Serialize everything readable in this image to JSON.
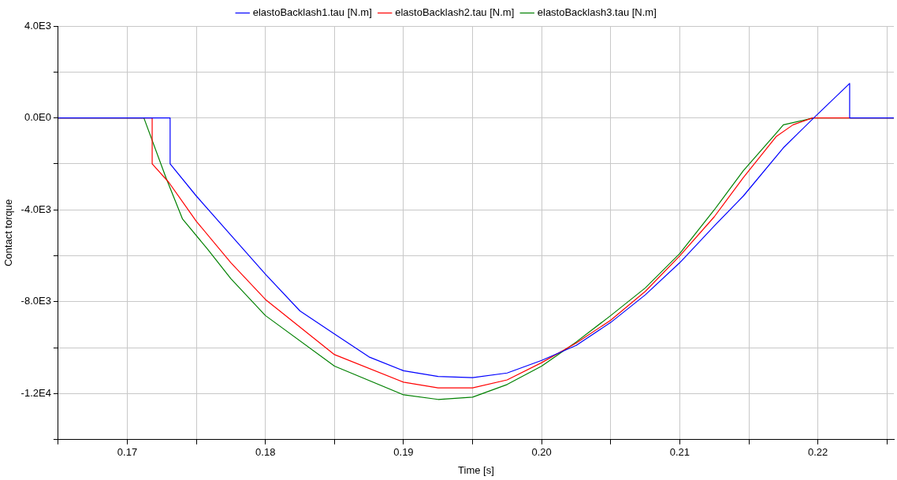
{
  "chart_data": {
    "type": "line",
    "xlabel": "Time [s]",
    "ylabel": "Contact torque",
    "legend": "top",
    "grid": true,
    "marker": "none",
    "xlim": [
      0.165,
      0.2255
    ],
    "ylim": [
      -14000,
      4000
    ],
    "xticks": [
      {
        "value": 0.165,
        "label": null
      },
      0.17,
      {
        "value": 0.175,
        "label": null
      },
      0.18,
      {
        "value": 0.185,
        "label": null
      },
      0.19,
      {
        "value": 0.195,
        "label": null
      },
      {
        "value": 0.2,
        "label": "0.20"
      },
      {
        "value": 0.205,
        "label": null
      },
      0.21,
      {
        "value": 0.215,
        "label": null
      },
      0.22,
      {
        "value": 0.225,
        "label": null
      }
    ],
    "yticks": [
      {
        "value": 4000,
        "label": "4.0E3"
      },
      {
        "value": 2000,
        "label": null
      },
      {
        "value": 0,
        "label": "0.0E0"
      },
      {
        "value": -2000,
        "label": null
      },
      {
        "value": -4000,
        "label": "-4.0E3"
      },
      {
        "value": -6000,
        "label": null
      },
      {
        "value": -8000,
        "label": "-8.0E3"
      },
      {
        "value": -10000,
        "label": null
      },
      {
        "value": -12000,
        "label": "-1.2E4"
      },
      {
        "value": -14000,
        "label": null
      }
    ],
    "series": [
      {
        "name": "elastoBacklash1.tau [N.m]",
        "color": "#0000ff",
        "x": [
          0.165,
          0.1731,
          0.1731,
          0.175,
          0.1775,
          0.18,
          0.1825,
          0.185,
          0.1875,
          0.19,
          0.1925,
          0.195,
          0.1975,
          0.2,
          0.2025,
          0.205,
          0.2075,
          0.21,
          0.2125,
          0.2146,
          0.2175,
          0.2197,
          0.2223,
          0.2223,
          0.2255
        ],
        "values": [
          0,
          0,
          -2000,
          -3400,
          -5100,
          -6800,
          -8400,
          -9400,
          -10400,
          -11000,
          -11250,
          -11300,
          -11100,
          -10550,
          -9900,
          -8900,
          -7700,
          -6300,
          -4700,
          -3400,
          -1300,
          0,
          1500,
          0,
          0
        ]
      },
      {
        "name": "elastoBacklash2.tau [N.m]",
        "color": "#ff0000",
        "x": [
          0.165,
          0.1718,
          0.1718,
          0.173,
          0.175,
          0.1775,
          0.18,
          0.185,
          0.19,
          0.1925,
          0.195,
          0.1975,
          0.2,
          0.2025,
          0.205,
          0.2075,
          0.21,
          0.2125,
          0.2146,
          0.217,
          0.2182,
          0.2196,
          0.2255
        ],
        "values": [
          0,
          0,
          -2000,
          -2800,
          -4500,
          -6300,
          -7900,
          -10300,
          -11500,
          -11750,
          -11750,
          -11400,
          -10650,
          -9800,
          -8800,
          -7550,
          -6000,
          -4300,
          -2600,
          -800,
          -300,
          0,
          0
        ]
      },
      {
        "name": "elastoBacklash3.tau [N.m]",
        "color": "#008000",
        "x": [
          0.165,
          0.1712,
          0.1728,
          0.174,
          0.1758,
          0.1775,
          0.18,
          0.185,
          0.19,
          0.1925,
          0.195,
          0.1975,
          0.2,
          0.2025,
          0.205,
          0.2075,
          0.21,
          0.2125,
          0.2146,
          0.217,
          0.2175,
          0.2197,
          0.2255
        ],
        "values": [
          0,
          0,
          -2600,
          -4400,
          -5700,
          -7000,
          -8600,
          -10800,
          -12050,
          -12250,
          -12150,
          -11600,
          -10800,
          -9750,
          -8600,
          -7400,
          -5900,
          -4000,
          -2300,
          -650,
          -300,
          0,
          0
        ]
      }
    ]
  }
}
